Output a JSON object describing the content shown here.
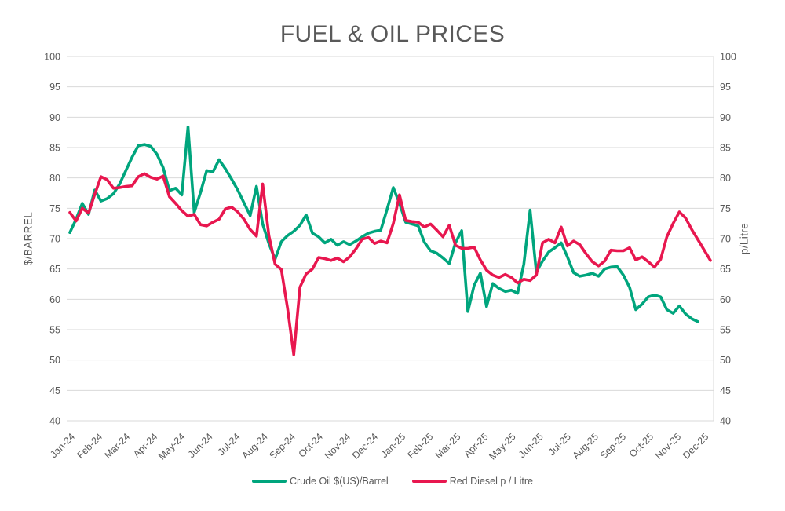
{
  "colors": {
    "title_text": "#595959",
    "axis_text": "#595959",
    "gridline": "#D9D9D9",
    "background": "#FFFFFF",
    "crude_oil": "#00A57D",
    "red_diesel": "#E8174F"
  },
  "chart_data": {
    "type": "line",
    "title": "FUEL & OIL PRICES",
    "grid": true,
    "legend_position": "bottom",
    "y_axis_left": {
      "label": "$/BARREL",
      "min": 40,
      "max": 100,
      "step": 5,
      "ticks": [
        40,
        45,
        50,
        55,
        60,
        65,
        70,
        75,
        80,
        85,
        90,
        95,
        100
      ]
    },
    "y_axis_right": {
      "label": "p/Litre",
      "min": 40,
      "max": 100,
      "step": 5,
      "ticks": [
        40,
        45,
        50,
        55,
        60,
        65,
        70,
        75,
        80,
        85,
        90,
        95,
        100
      ]
    },
    "x_axis": {
      "tick_labels": [
        "Jan-24",
        "Feb-24",
        "Mar-24",
        "Apr-24",
        "May-24",
        "Jun-24",
        "Jul-24",
        "Aug-24",
        "Sep-24",
        "Oct-24",
        "Nov-24",
        "Dec-24",
        "Jan-25",
        "Feb-25",
        "Mar-25",
        "Apr-25",
        "May-25",
        "Jun-25",
        "Jul-25",
        "Aug-25",
        "Sep-25",
        "Oct-25",
        "Nov-25",
        "Dec-25"
      ],
      "points_per_month": 4.33,
      "granularity": "weekly"
    },
    "series": [
      {
        "name": "Crude Oil $(US)/Barrel",
        "axis": "left",
        "color": "#00A57D",
        "values": [
          71.0,
          73.2,
          75.8,
          74.0,
          78.0,
          76.2,
          76.6,
          77.4,
          79.0,
          81.2,
          83.4,
          85.3,
          85.5,
          85.2,
          83.9,
          81.7,
          77.9,
          78.3,
          77.2,
          88.4,
          74.3,
          77.6,
          81.2,
          81.0,
          83.0,
          81.5,
          79.8,
          78.0,
          75.9,
          73.8,
          78.6,
          72.4,
          69.2,
          66.6,
          69.5,
          70.5,
          71.2,
          72.2,
          73.9,
          70.9,
          70.3,
          69.3,
          69.9,
          68.9,
          69.5,
          69.0,
          69.6,
          70.3,
          70.9,
          71.2,
          71.4,
          74.8,
          78.4,
          75.8,
          72.7,
          72.4,
          72.1,
          69.4,
          68.0,
          67.6,
          66.8,
          65.9,
          69.3,
          71.3,
          58.0,
          62.3,
          64.3,
          58.8,
          62.6,
          61.8,
          61.3,
          61.5,
          61.0,
          65.8,
          74.7,
          64.5,
          66.3,
          67.8,
          68.5,
          69.3,
          67.0,
          64.4,
          63.8,
          64.0,
          64.3,
          63.8,
          65.0,
          65.3,
          65.4,
          64.0,
          62.0,
          58.3,
          59.2,
          60.4,
          60.7,
          60.4,
          58.3,
          57.7,
          58.9,
          57.6,
          56.8,
          56.3,
          null,
          null
        ]
      },
      {
        "name": "Red Diesel p / Litre",
        "axis": "right",
        "color": "#E8174F",
        "values": [
          74.3,
          72.9,
          75.0,
          74.2,
          77.3,
          80.2,
          79.7,
          78.3,
          78.4,
          78.6,
          78.7,
          80.2,
          80.7,
          80.1,
          79.8,
          80.3,
          76.9,
          75.8,
          74.6,
          73.7,
          74.0,
          72.3,
          72.1,
          72.7,
          73.2,
          74.9,
          75.2,
          74.4,
          73.2,
          71.5,
          70.4,
          79.0,
          70.5,
          65.8,
          64.9,
          58.5,
          50.9,
          62.0,
          64.2,
          65.0,
          66.9,
          66.7,
          66.4,
          66.8,
          66.2,
          67.0,
          68.3,
          69.9,
          70.2,
          69.2,
          69.6,
          69.3,
          72.5,
          77.2,
          73.0,
          72.8,
          72.7,
          71.9,
          72.4,
          71.4,
          70.3,
          72.2,
          68.9,
          68.4,
          68.4,
          68.6,
          66.5,
          64.8,
          64.0,
          63.6,
          64.1,
          63.6,
          62.7,
          63.3,
          63.1,
          64.0,
          69.3,
          69.9,
          69.3,
          71.9,
          68.8,
          69.6,
          69.0,
          67.5,
          66.2,
          65.5,
          66.3,
          68.1,
          68.0,
          68.0,
          68.5,
          66.5,
          67.0,
          66.2,
          65.3,
          66.6,
          70.3,
          72.5,
          74.4,
          73.4,
          71.5,
          69.8,
          68.1,
          66.4
        ]
      }
    ]
  }
}
